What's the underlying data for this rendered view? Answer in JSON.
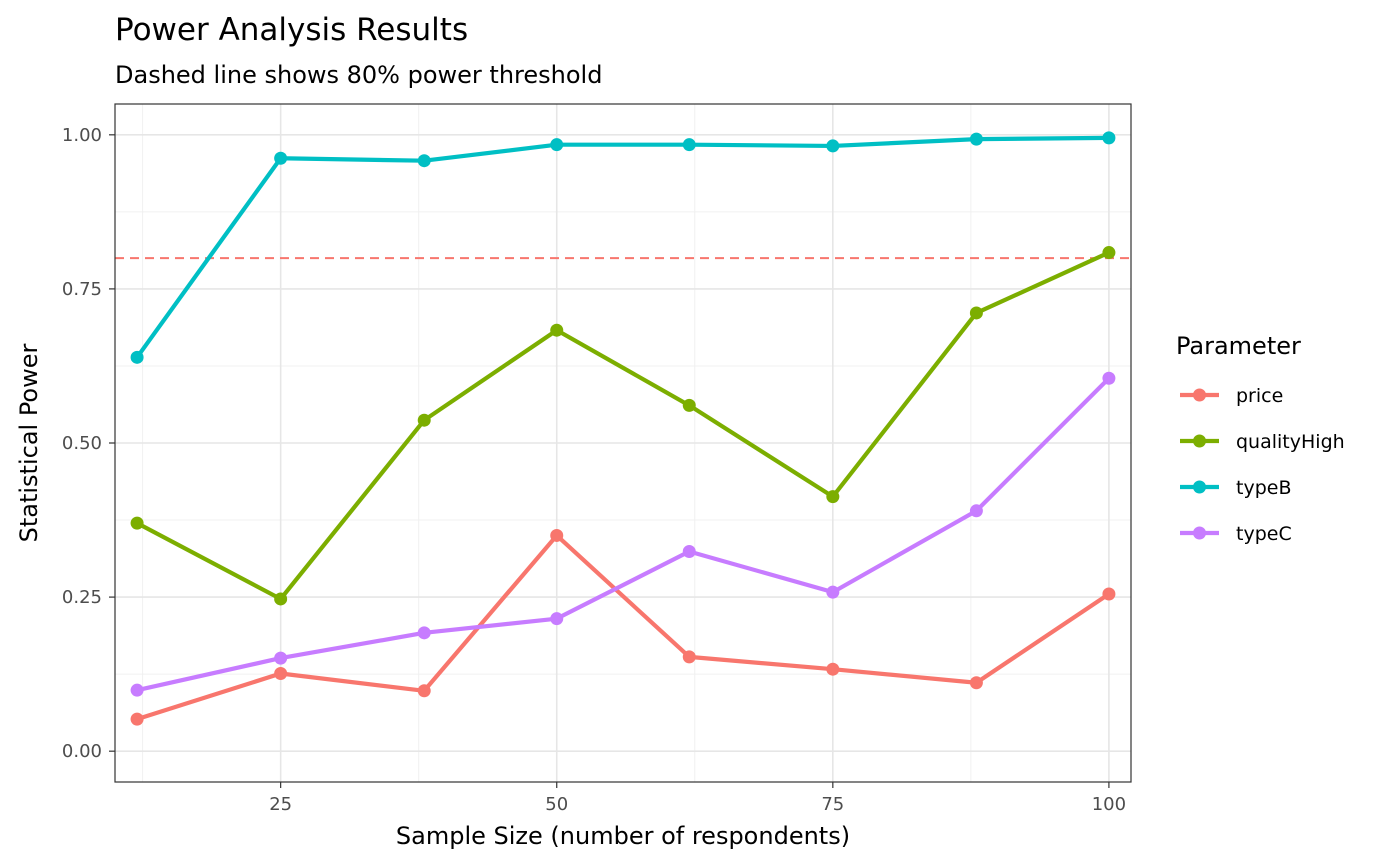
{
  "chart_data": {
    "type": "line",
    "title": "Power Analysis Results",
    "subtitle": "Dashed line shows 80% power threshold",
    "xlabel": "Sample Size (number of respondents)",
    "ylabel": "Statistical Power",
    "xlim": [
      10,
      102
    ],
    "ylim": [
      -0.05,
      1.05
    ],
    "x_major_ticks": [
      25,
      50,
      75,
      100
    ],
    "x_minor_ticks": [
      12.5,
      37.5,
      62.5,
      87.5
    ],
    "y_major_ticks": [
      0,
      0.25,
      0.5,
      0.75,
      1
    ],
    "y_tick_labels": [
      "0.00",
      "0.25",
      "0.50",
      "0.75",
      "1.00"
    ],
    "y_minor_ticks": [
      0.125,
      0.375,
      0.625,
      0.875
    ],
    "grid": true,
    "reference_line": {
      "y": 0.8,
      "style": "dashed",
      "color": "#F8766D"
    },
    "legend": {
      "title": "Parameter",
      "position": "right"
    },
    "x": [
      12,
      25,
      38,
      50,
      62,
      75,
      88,
      100
    ],
    "series": [
      {
        "name": "price",
        "color": "#F8766D",
        "values": [
          0.052,
          0.126,
          0.098,
          0.35,
          0.153,
          0.133,
          0.111,
          0.255
        ]
      },
      {
        "name": "qualityHigh",
        "color": "#7CAE00",
        "values": [
          0.37,
          0.247,
          0.537,
          0.683,
          0.561,
          0.413,
          0.711,
          0.809
        ]
      },
      {
        "name": "typeB",
        "color": "#00BFC4",
        "values": [
          0.639,
          0.962,
          0.958,
          0.984,
          0.984,
          0.982,
          0.993,
          0.995
        ]
      },
      {
        "name": "typeC",
        "color": "#C77CFF",
        "values": [
          0.099,
          0.151,
          0.192,
          0.215,
          0.324,
          0.258,
          0.39,
          0.605
        ]
      }
    ]
  }
}
